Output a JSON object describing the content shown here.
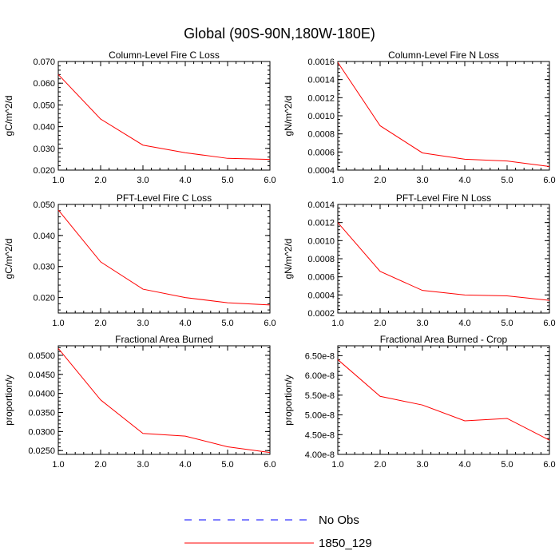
{
  "figure": {
    "title": "Global (90S-90N,180W-180E)",
    "legend": [
      {
        "label": "No Obs",
        "color": "#0000ff",
        "dashed": true
      },
      {
        "label": "1850_129",
        "color": "#ff0000",
        "dashed": false
      }
    ]
  },
  "chart_data": [
    {
      "type": "line",
      "title": "Column-Level Fire C Loss",
      "ylabel": "gC/m^2/d",
      "x": [
        1.0,
        2.0,
        3.0,
        4.0,
        5.0,
        6.0
      ],
      "xlim": [
        1.0,
        6.0
      ],
      "xticks": [
        "1.0",
        "2.0",
        "3.0",
        "4.0",
        "5.0",
        "6.0"
      ],
      "ylim": [
        0.02,
        0.07
      ],
      "yticks": [
        0.02,
        0.03,
        0.04,
        0.05,
        0.06,
        0.07
      ],
      "ytick_labels": [
        "0.020",
        "0.030",
        "0.040",
        "0.050",
        "0.060",
        "0.070"
      ],
      "series": [
        {
          "name": "1850_129",
          "color": "#ff0000",
          "values": [
            0.064,
            0.0435,
            0.0315,
            0.028,
            0.0254,
            0.0249
          ]
        }
      ]
    },
    {
      "type": "line",
      "title": "Column-Level Fire N Loss",
      "ylabel": "gN/m^2/d",
      "x": [
        1.0,
        2.0,
        3.0,
        4.0,
        5.0,
        6.0
      ],
      "xlim": [
        1.0,
        6.0
      ],
      "xticks": [
        "1.0",
        "2.0",
        "3.0",
        "4.0",
        "5.0",
        "6.0"
      ],
      "ylim": [
        0.0004,
        0.0016
      ],
      "yticks": [
        0.0004,
        0.0006,
        0.0008,
        0.001,
        0.0012,
        0.0014,
        0.0016
      ],
      "ytick_labels": [
        "0.0004",
        "0.0006",
        "0.0008",
        "0.0010",
        "0.0012",
        "0.0014",
        "0.0016"
      ],
      "series": [
        {
          "name": "1850_129",
          "color": "#ff0000",
          "values": [
            0.00159,
            0.00089,
            0.00059,
            0.00052,
            0.0005,
            0.00044
          ]
        }
      ]
    },
    {
      "type": "line",
      "title": "PFT-Level Fire C Loss",
      "ylabel": "gC/m^2/d",
      "x": [
        1.0,
        2.0,
        3.0,
        4.0,
        5.0,
        6.0
      ],
      "xlim": [
        1.0,
        6.0
      ],
      "xticks": [
        "1.0",
        "2.0",
        "3.0",
        "4.0",
        "5.0",
        "6.0"
      ],
      "ylim": [
        0.015,
        0.05
      ],
      "yticks": [
        0.02,
        0.03,
        0.04,
        0.05
      ],
      "ytick_labels": [
        "0.020",
        "0.030",
        "0.040",
        "0.050"
      ],
      "series": [
        {
          "name": "1850_129",
          "color": "#ff0000",
          "values": [
            0.0482,
            0.0315,
            0.0227,
            0.02,
            0.0183,
            0.0176
          ]
        }
      ]
    },
    {
      "type": "line",
      "title": "PFT-Level Fire N Loss",
      "ylabel": "gN/m^2/d",
      "x": [
        1.0,
        2.0,
        3.0,
        4.0,
        5.0,
        6.0
      ],
      "xlim": [
        1.0,
        6.0
      ],
      "xticks": [
        "1.0",
        "2.0",
        "3.0",
        "4.0",
        "5.0",
        "6.0"
      ],
      "ylim": [
        0.0002,
        0.0014
      ],
      "yticks": [
        0.0002,
        0.0004,
        0.0006,
        0.0008,
        0.001,
        0.0012,
        0.0014
      ],
      "ytick_labels": [
        "0.0002",
        "0.0004",
        "0.0006",
        "0.0008",
        "0.0010",
        "0.0012",
        "0.0014"
      ],
      "series": [
        {
          "name": "1850_129",
          "color": "#ff0000",
          "values": [
            0.0012,
            0.00066,
            0.00045,
            0.0004,
            0.00039,
            0.00034
          ]
        }
      ]
    },
    {
      "type": "line",
      "title": "Fractional Area Burned",
      "ylabel": "proportion/y",
      "x": [
        1.0,
        2.0,
        3.0,
        4.0,
        5.0,
        6.0
      ],
      "xlim": [
        1.0,
        6.0
      ],
      "xticks": [
        "1.0",
        "2.0",
        "3.0",
        "4.0",
        "5.0",
        "6.0"
      ],
      "ylim": [
        0.024,
        0.0525
      ],
      "yticks": [
        0.025,
        0.03,
        0.035,
        0.04,
        0.045,
        0.05
      ],
      "ytick_labels": [
        "0.0250",
        "0.0300",
        "0.0350",
        "0.0400",
        "0.0450",
        "0.0500"
      ],
      "series": [
        {
          "name": "1850_129",
          "color": "#ff0000",
          "values": [
            0.0518,
            0.0383,
            0.0295,
            0.0288,
            0.026,
            0.0245
          ]
        }
      ]
    },
    {
      "type": "line",
      "title": "Fractional Area Burned - Crop",
      "ylabel": "proportion/y",
      "x": [
        1.0,
        2.0,
        3.0,
        4.0,
        5.0,
        6.0
      ],
      "xlim": [
        1.0,
        6.0
      ],
      "xticks": [
        "1.0",
        "2.0",
        "3.0",
        "4.0",
        "5.0",
        "6.0"
      ],
      "ylim": [
        4e-08,
        6.75e-08
      ],
      "yticks": [
        4e-08,
        4.5e-08,
        5e-08,
        5.5e-08,
        6e-08,
        6.5e-08
      ],
      "ytick_labels": [
        "4.00e-8",
        "4.50e-8",
        "5.00e-8",
        "5.50e-8",
        "6.00e-8",
        "6.50e-8"
      ],
      "series": [
        {
          "name": "1850_129",
          "color": "#ff0000",
          "values": [
            6.4e-08,
            5.47e-08,
            5.25e-08,
            4.85e-08,
            4.91e-08,
            4.36e-08
          ]
        }
      ]
    }
  ]
}
